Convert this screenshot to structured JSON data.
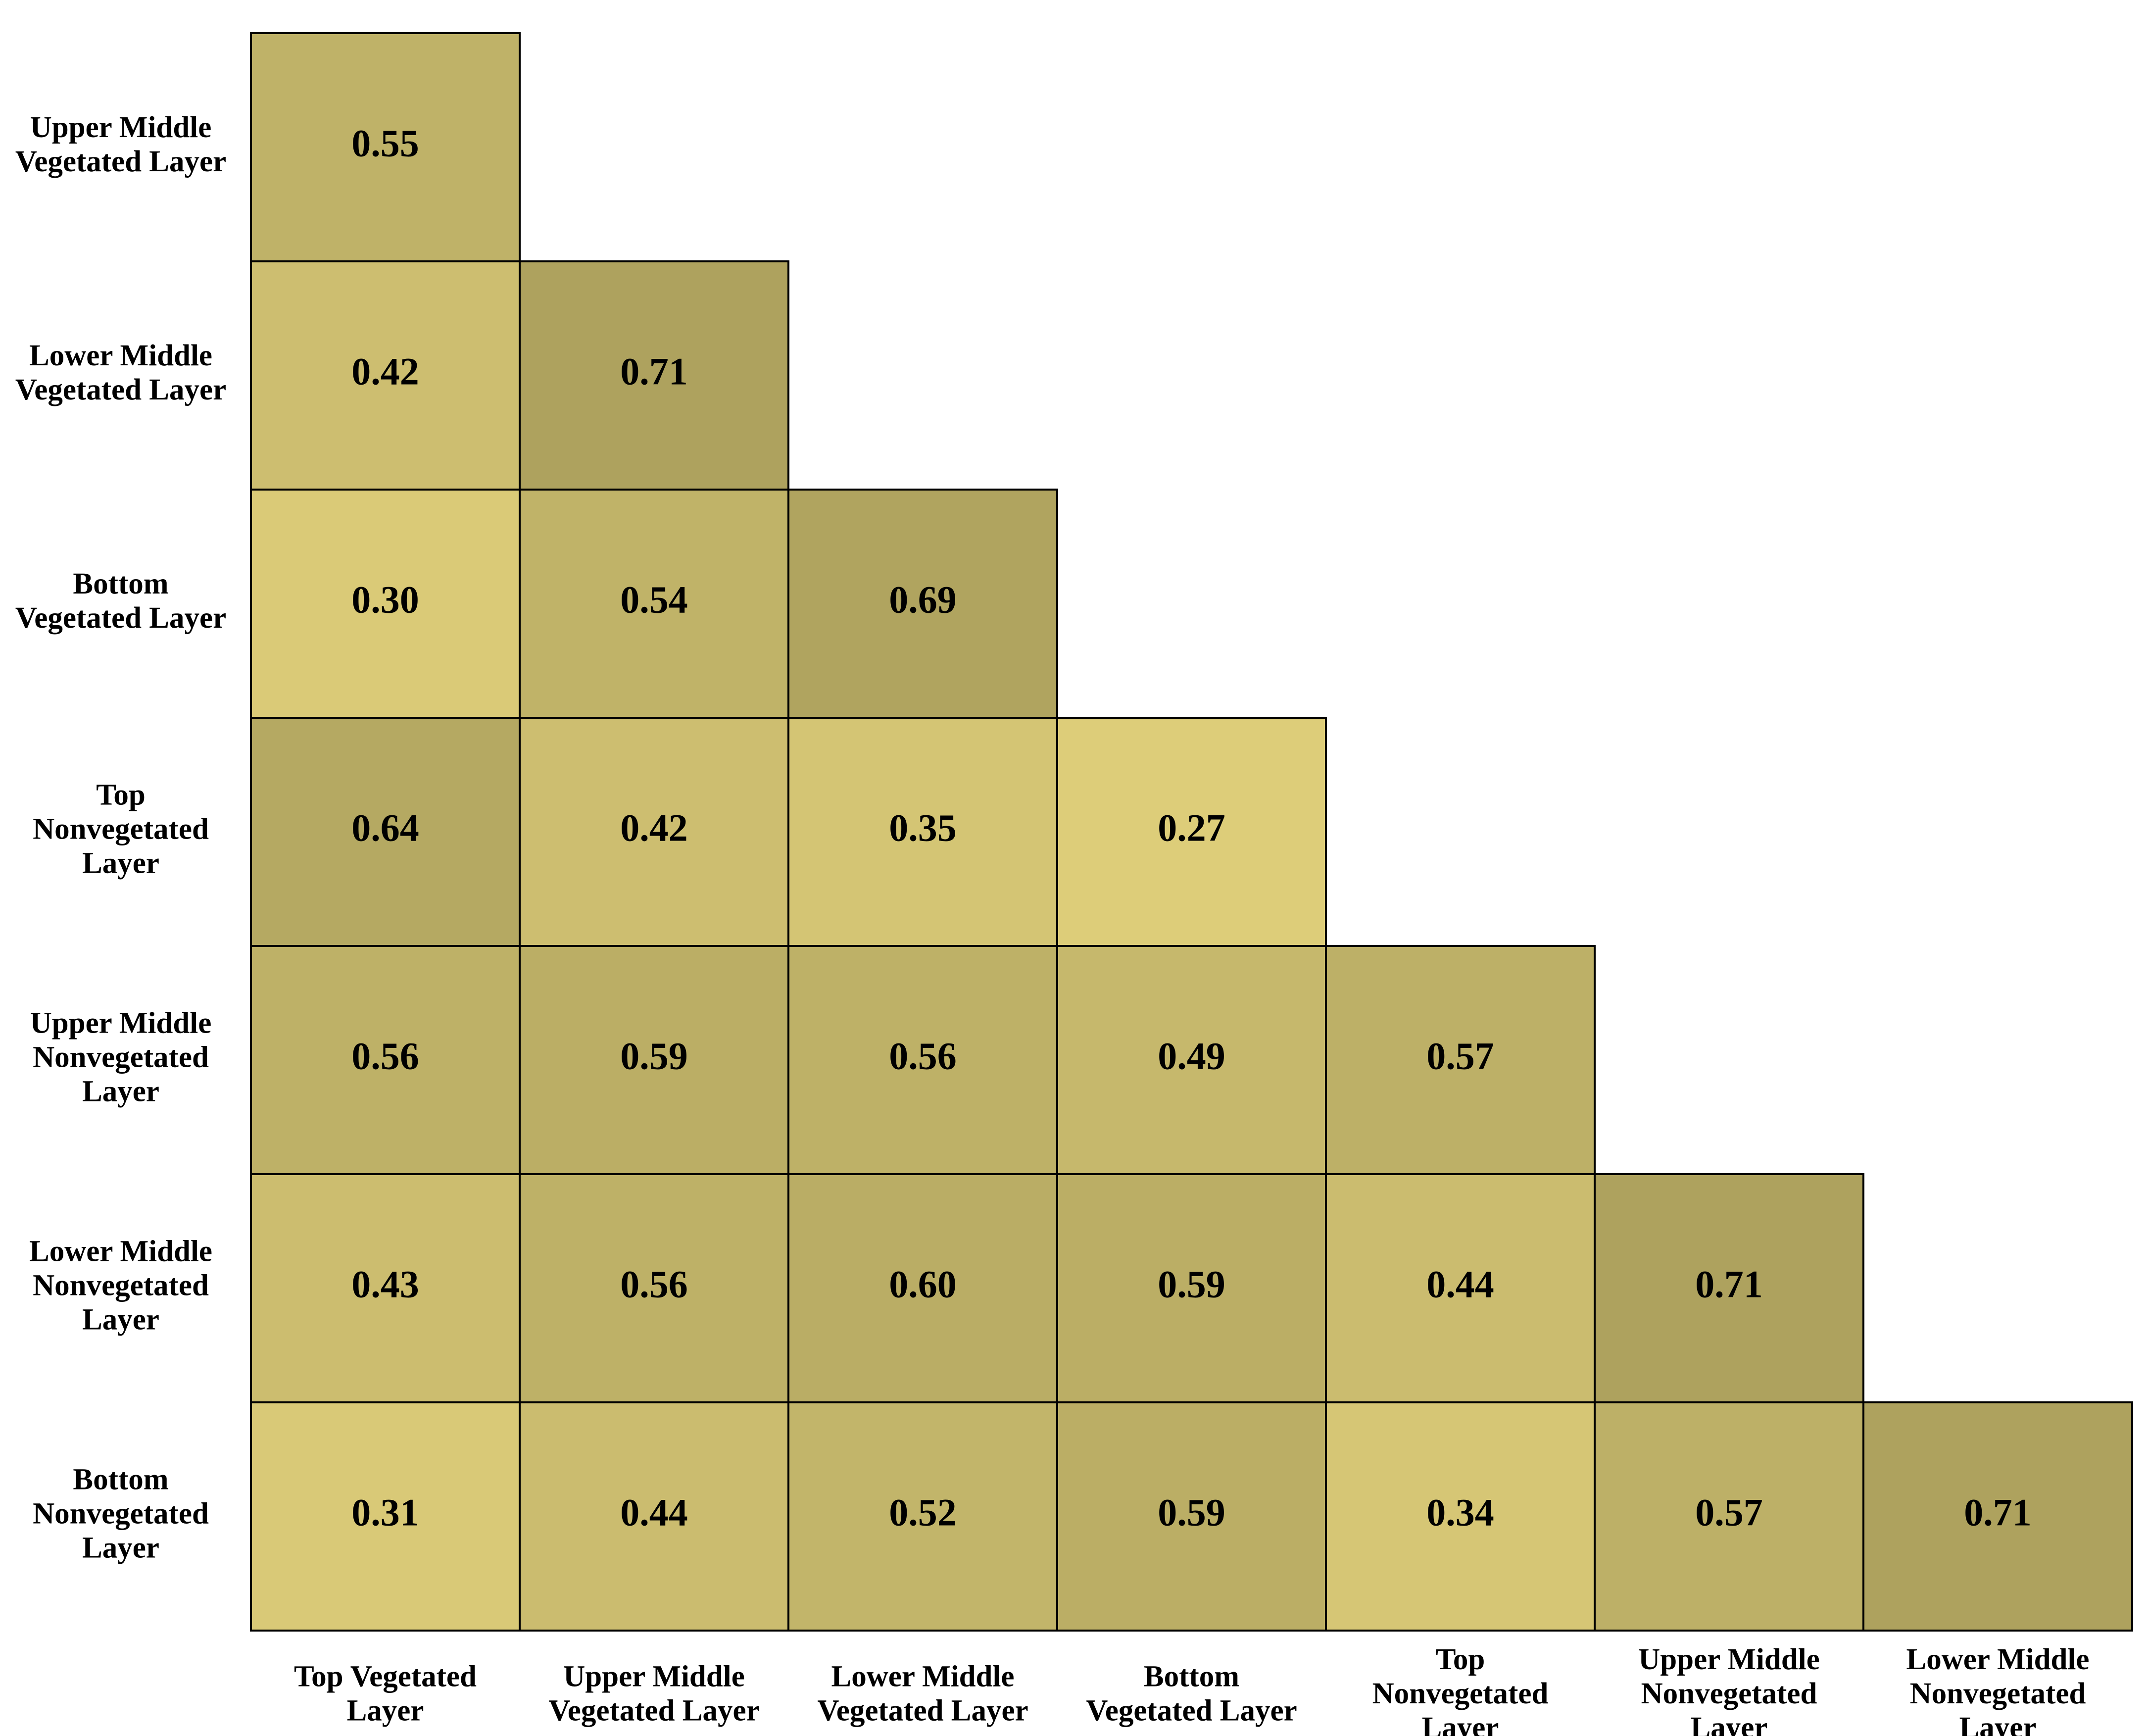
{
  "chart_data": {
    "type": "heatmap",
    "row_labels": [
      "Upper Middle\nVegetated Layer",
      "Lower Middle\nVegetated Layer",
      "Bottom\nVegetated Layer",
      "Top\nNonvegetated\nLayer",
      "Upper Middle\nNonvegetated\nLayer",
      "Lower Middle\nNonvegetated\nLayer",
      "Bottom\nNonvegetated\nLayer"
    ],
    "categories": [
      "Top Vegetated\nLayer",
      "Upper Middle\nVegetated Layer",
      "Lower Middle\nVegetated Layer",
      "Bottom\nVegetated Layer",
      "Top\nNonvegetated\nLayer",
      "Upper Middle\nNonvegetated\nLayer",
      "Lower Middle\nNonvegetated\nLayer"
    ],
    "values": [
      [
        0.55,
        null,
        null,
        null,
        null,
        null,
        null
      ],
      [
        0.42,
        0.71,
        null,
        null,
        null,
        null,
        null
      ],
      [
        0.3,
        0.54,
        0.69,
        null,
        null,
        null,
        null
      ],
      [
        0.64,
        0.42,
        0.35,
        0.27,
        null,
        null,
        null
      ],
      [
        0.56,
        0.59,
        0.56,
        0.49,
        0.57,
        null,
        null
      ],
      [
        0.43,
        0.56,
        0.6,
        0.59,
        0.44,
        0.71,
        null
      ],
      [
        0.31,
        0.44,
        0.52,
        0.59,
        0.34,
        0.57,
        0.71
      ]
    ],
    "value_labels": [
      [
        "0.55",
        null,
        null,
        null,
        null,
        null,
        null
      ],
      [
        "0.42",
        "0.71",
        null,
        null,
        null,
        null,
        null
      ],
      [
        "0.30",
        "0.54",
        "0.69",
        null,
        null,
        null,
        null
      ],
      [
        "0.64",
        "0.42",
        "0.35",
        "0.27",
        null,
        null,
        null
      ],
      [
        "0.56",
        "0.59",
        "0.56",
        "0.49",
        "0.57",
        null,
        null
      ],
      [
        "0.43",
        "0.56",
        "0.60",
        "0.59",
        "0.44",
        "0.71",
        null
      ],
      [
        "0.31",
        "0.44",
        "0.52",
        "0.59",
        "0.34",
        "0.57",
        "0.71"
      ]
    ],
    "colors": [
      "#ddcd79",
      "#aea25e"
    ]
  }
}
